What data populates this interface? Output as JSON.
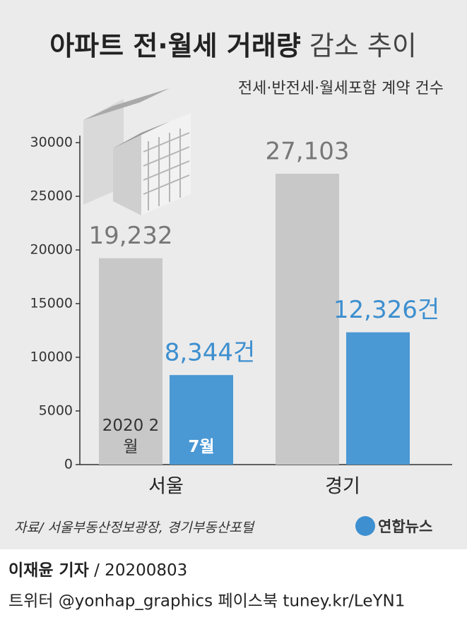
{
  "chart_data": {
    "type": "bar",
    "title": {
      "bold": "아파트 전·월세 거래량",
      "light": "감소 추이"
    },
    "subtitle": "전세·반전세·월세포함 계약 건수",
    "categories": [
      "서울",
      "경기"
    ],
    "series": [
      {
        "name": "2020 2월",
        "color": "#c8c8c8",
        "values": [
          19232,
          27103
        ],
        "value_labels": [
          "19,232",
          "27,103"
        ],
        "label_color": "#777777"
      },
      {
        "name": "7월",
        "color": "#4a98d4",
        "values": [
          8344,
          12326
        ],
        "value_labels": [
          "8,344건",
          "12,326건"
        ],
        "label_color": "#3d8fcf"
      }
    ],
    "ylim": [
      0,
      30000
    ],
    "yticks": [
      0,
      5000,
      10000,
      15000,
      20000,
      25000,
      30000
    ],
    "source": "자료/ 서울부동산정보광장, 경기부동산포털",
    "logo": "연합뉴스"
  },
  "footer": {
    "reporter": "이재윤 기자",
    "date": "/ 20200803",
    "social": "트위터 @yonhap_graphics  페이스북 tuney.kr/LeYN1"
  }
}
